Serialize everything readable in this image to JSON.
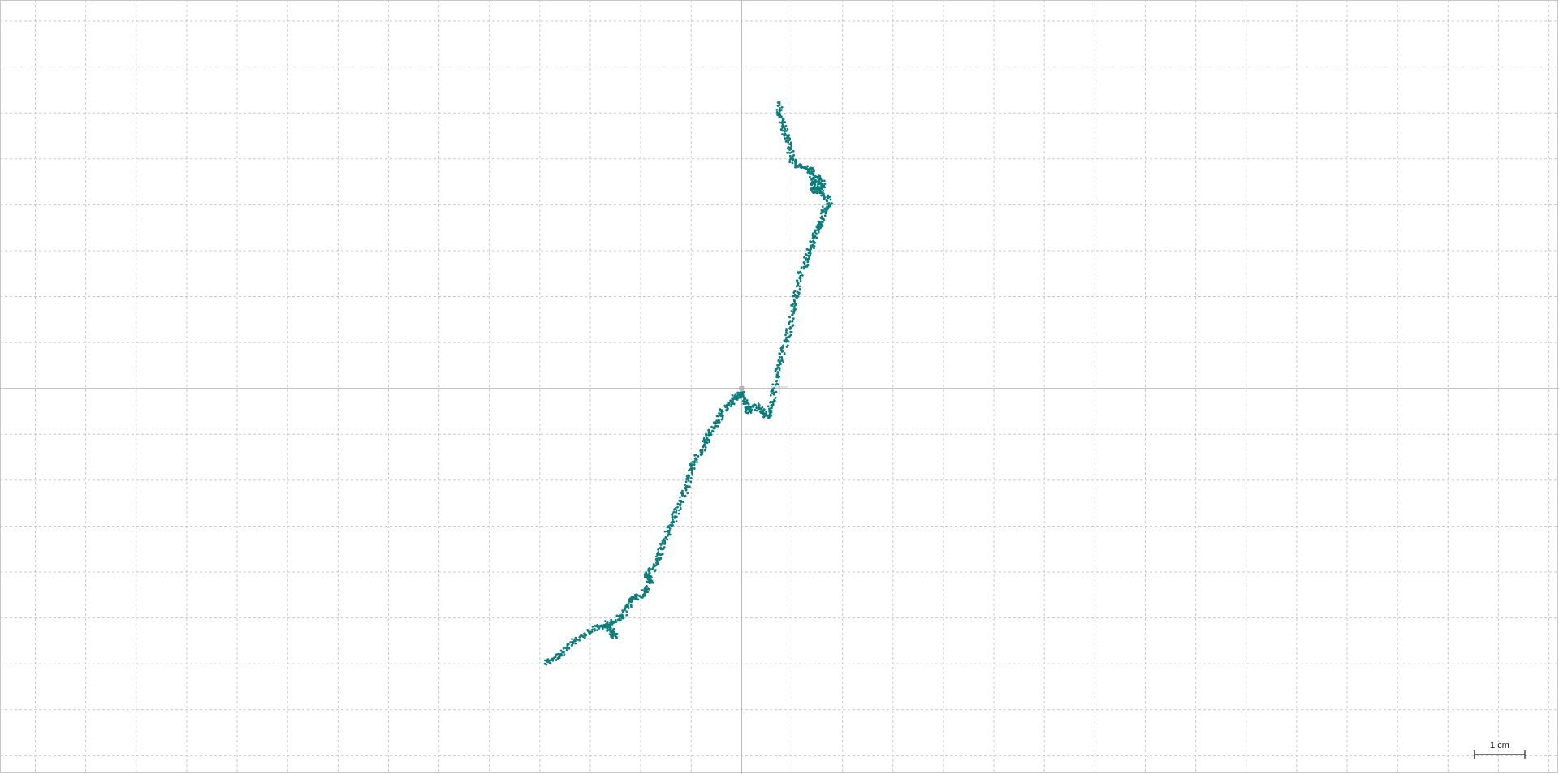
{
  "chart_data": {
    "type": "scatter",
    "title": "",
    "xlabel": "",
    "ylabel": "",
    "grid": true,
    "unit": "cm",
    "axis_origin": [
      0,
      0
    ],
    "xlim": [
      -14.7,
      16.2
    ],
    "ylim": [
      -8.4,
      8.46
    ],
    "scale_bar": {
      "label": "1 cm",
      "length": 1,
      "placement": "bottom-right"
    },
    "colors": {
      "points": "#0b7d7d",
      "grid": "#c8c8c8",
      "axes": "#b4b4b4",
      "background": "#ffffff"
    },
    "series": [
      {
        "x": [
          -3.9,
          -3.75,
          -3.6,
          -3.45,
          -3.3,
          -3.15,
          -3.0,
          -2.85,
          -2.7,
          -2.6,
          -2.5,
          -2.6,
          -2.7,
          -2.5,
          -2.35,
          -2.25,
          -2.2,
          -2.1,
          -1.95,
          -1.9,
          -1.8,
          -1.85,
          -1.9,
          -1.75,
          -1.65,
          -1.6,
          -1.55,
          -1.45,
          -1.35,
          -1.3,
          -1.2,
          -1.1,
          -1.05,
          -1.0,
          -0.9,
          -0.8,
          -0.7,
          -0.65,
          -0.55,
          -0.45,
          -0.4,
          -0.3,
          -0.2,
          -0.15,
          -0.05,
          0.0,
          0.05,
          0.1,
          0.15,
          0.25,
          0.35,
          0.45,
          0.5,
          0.55,
          0.6,
          0.65,
          0.7,
          0.75,
          0.8,
          0.9,
          0.95,
          1.0,
          1.05,
          1.1,
          1.15,
          1.25,
          1.3,
          1.4,
          1.45,
          1.5,
          1.55,
          1.6,
          1.65,
          1.75,
          1.7,
          1.6,
          1.5,
          1.45,
          1.4,
          1.5,
          1.65,
          1.55,
          1.45,
          1.4,
          1.35,
          1.25,
          1.1,
          1.0,
          0.95,
          0.9,
          0.85,
          0.8,
          0.75,
          0.75
        ],
        "y": [
          -6.0,
          -5.9,
          -5.8,
          -5.65,
          -5.5,
          -5.4,
          -5.3,
          -5.2,
          -5.15,
          -5.25,
          -5.4,
          -5.3,
          -5.15,
          -5.05,
          -4.95,
          -4.75,
          -4.6,
          -4.55,
          -4.5,
          -4.35,
          -4.2,
          -4.1,
          -4.05,
          -3.9,
          -3.7,
          -3.5,
          -3.3,
          -3.1,
          -2.9,
          -2.7,
          -2.45,
          -2.2,
          -1.95,
          -1.75,
          -1.55,
          -1.35,
          -1.15,
          -1.0,
          -0.85,
          -0.7,
          -0.55,
          -0.4,
          -0.3,
          -0.2,
          -0.15,
          -0.1,
          -0.25,
          -0.4,
          -0.5,
          -0.35,
          -0.45,
          -0.55,
          -0.6,
          -0.5,
          -0.3,
          0.0,
          0.3,
          0.55,
          0.8,
          1.05,
          1.3,
          1.6,
          1.9,
          2.1,
          2.4,
          2.7,
          2.9,
          3.1,
          3.3,
          3.45,
          3.55,
          3.7,
          3.9,
          4.0,
          4.15,
          4.25,
          4.35,
          4.3,
          4.45,
          4.6,
          4.45,
          4.3,
          4.5,
          4.7,
          4.75,
          4.8,
          4.85,
          5.0,
          5.2,
          5.45,
          5.6,
          5.8,
          6.0,
          6.2
        ]
      }
    ]
  }
}
